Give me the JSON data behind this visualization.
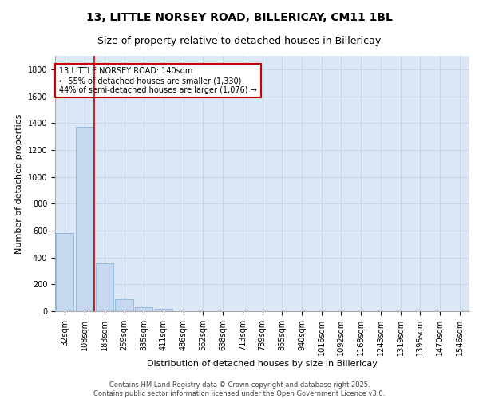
{
  "title_line1": "13, LITTLE NORSEY ROAD, BILLERICAY, CM11 1BL",
  "title_line2": "Size of property relative to detached houses in Billericay",
  "xlabel": "Distribution of detached houses by size in Billericay",
  "ylabel": "Number of detached properties",
  "categories": [
    "32sqm",
    "108sqm",
    "183sqm",
    "259sqm",
    "335sqm",
    "411sqm",
    "486sqm",
    "562sqm",
    "638sqm",
    "713sqm",
    "789sqm",
    "865sqm",
    "940sqm",
    "1016sqm",
    "1092sqm",
    "1168sqm",
    "1243sqm",
    "1319sqm",
    "1395sqm",
    "1470sqm",
    "1546sqm"
  ],
  "values": [
    580,
    1370,
    355,
    90,
    30,
    15,
    0,
    0,
    0,
    0,
    0,
    0,
    0,
    0,
    0,
    0,
    0,
    0,
    0,
    0,
    0
  ],
  "bar_color": "#c5d8f0",
  "bar_edge_color": "#8ab4d8",
  "vline_x": 1.5,
  "vline_color": "#cc0000",
  "annotation_box_text": "13 LITTLE NORSEY ROAD: 140sqm\n← 55% of detached houses are smaller (1,330)\n44% of semi-detached houses are larger (1,076) →",
  "box_edge_color": "#cc0000",
  "ylim": [
    0,
    1900
  ],
  "yticks": [
    0,
    200,
    400,
    600,
    800,
    1000,
    1200,
    1400,
    1600,
    1800
  ],
  "grid_color": "#c8d4e8",
  "background_color": "#dce8f5",
  "footer_text": "Contains HM Land Registry data © Crown copyright and database right 2025.\nContains public sector information licensed under the Open Government Licence v3.0.",
  "title_fontsize": 10,
  "subtitle_fontsize": 9,
  "axis_label_fontsize": 8,
  "tick_fontsize": 7,
  "annotation_fontsize": 7,
  "footer_fontsize": 6
}
